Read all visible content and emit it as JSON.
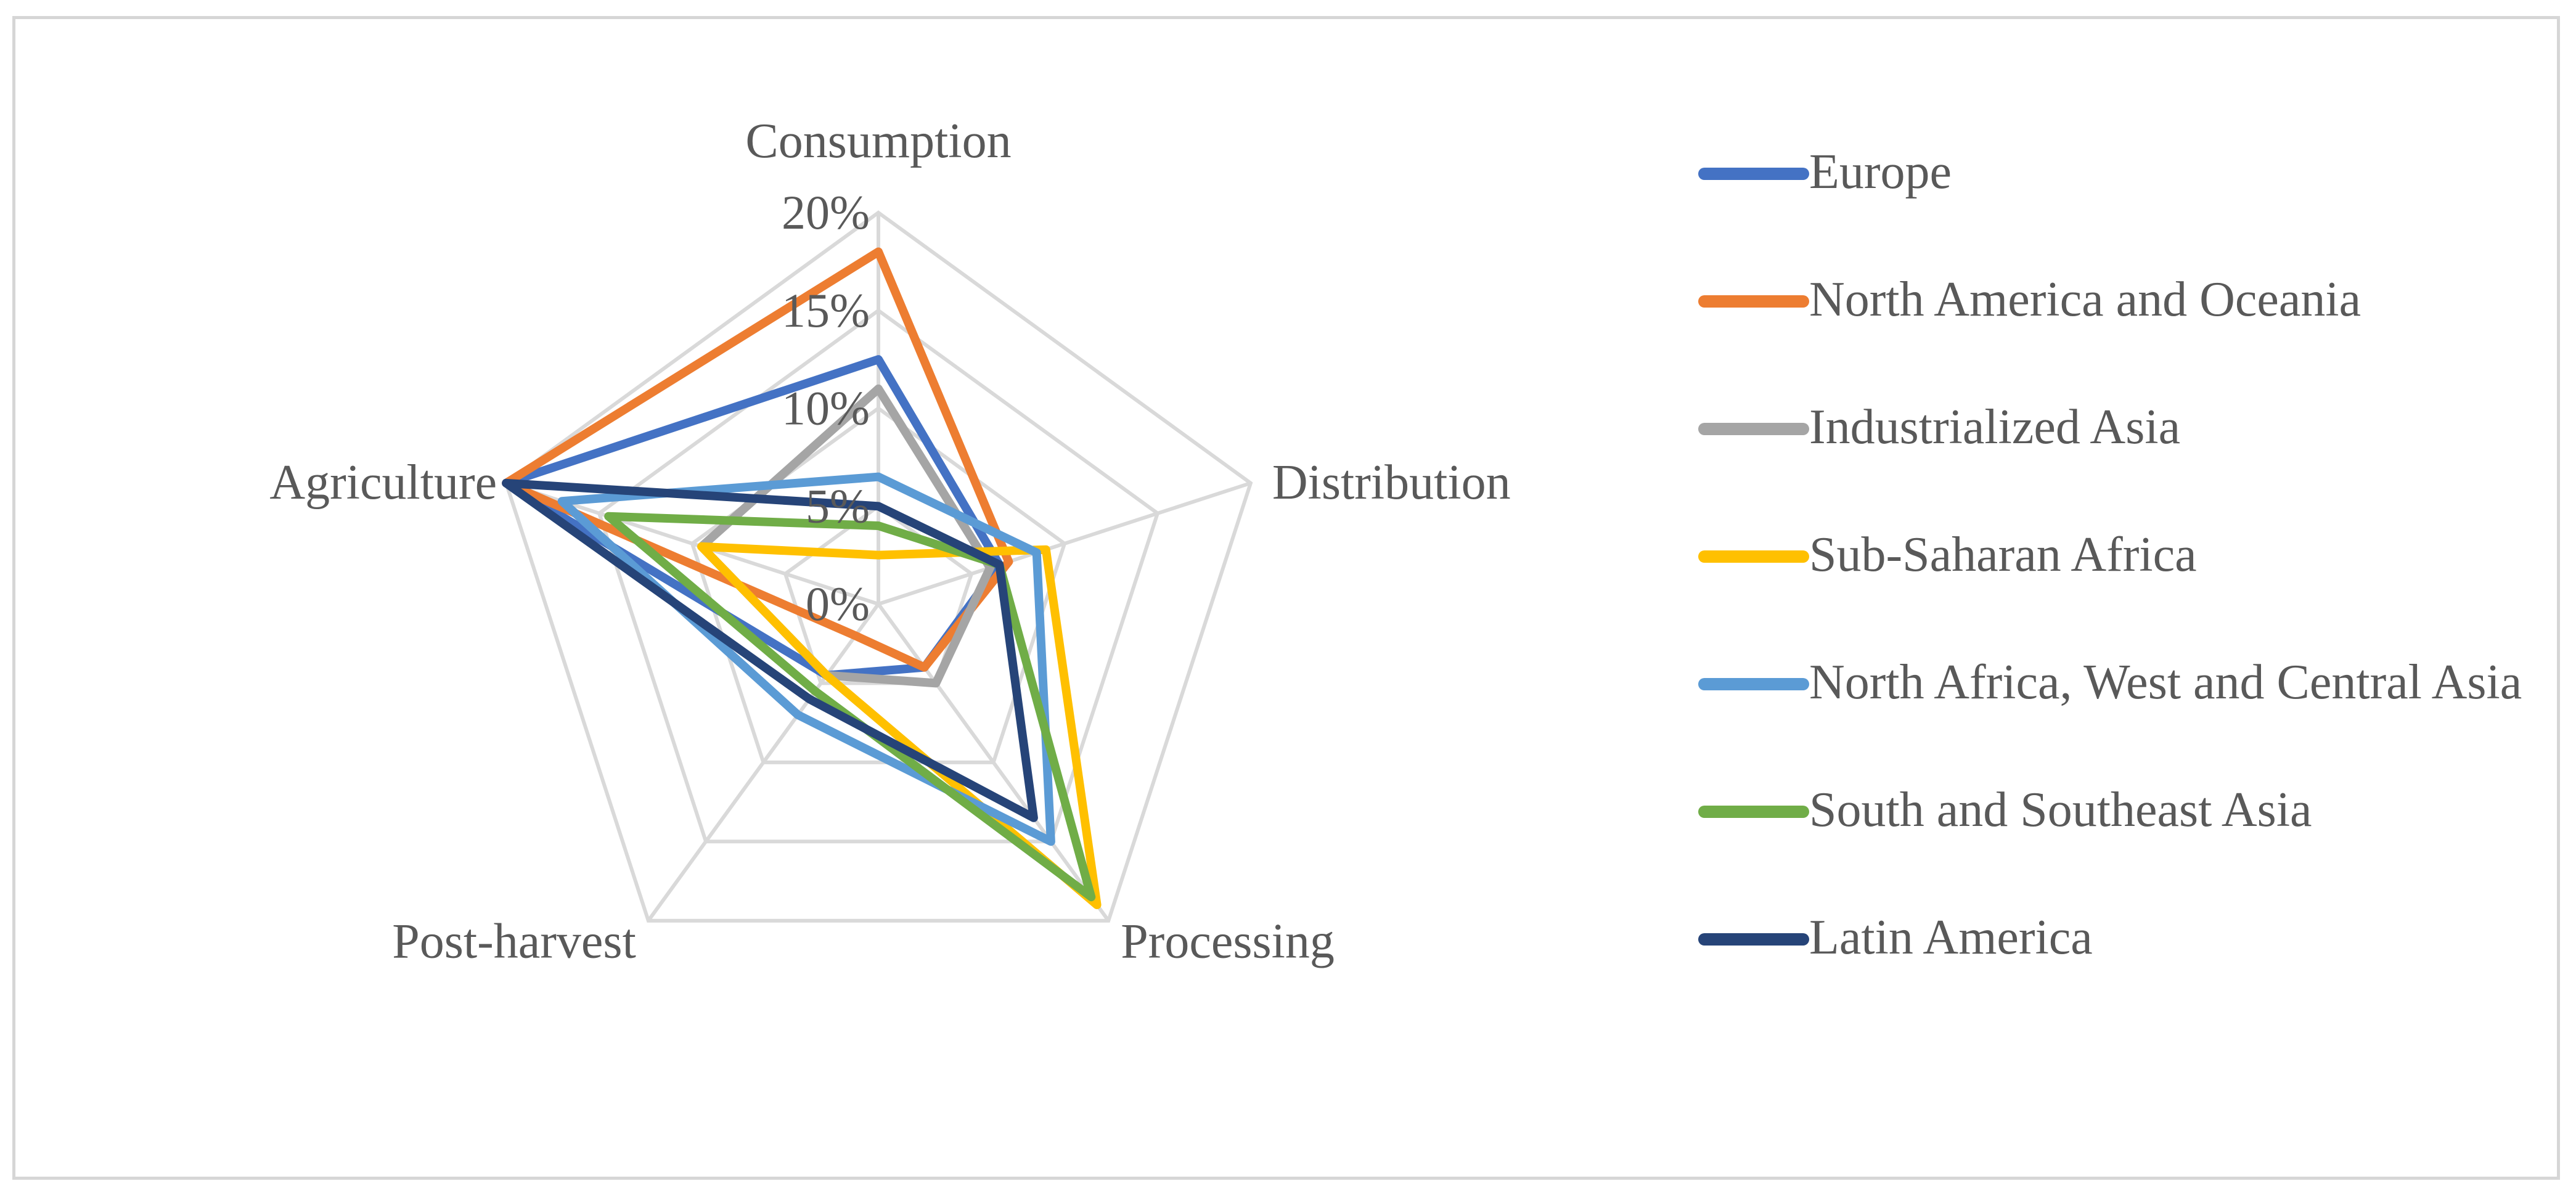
{
  "chart_data": {
    "type": "radar",
    "axes": [
      "Consumption",
      "Distribution",
      "Processing",
      "Post-harvest",
      "Agriculture"
    ],
    "tick_labels": [
      "0%",
      "5%",
      "10%",
      "15%",
      "20%"
    ],
    "range": [
      0,
      20
    ],
    "grid": true,
    "legend_position": "right",
    "series": [
      {
        "name": "Europe",
        "color": "#4472C4",
        "values": [
          12.5,
          6.5,
          4,
          4.5,
          20
        ]
      },
      {
        "name": "North America and Oceania",
        "color": "#ED7D31",
        "values": [
          18,
          7,
          4,
          2,
          20
        ]
      },
      {
        "name": "Industrialized Asia",
        "color": "#A5A5A5",
        "values": [
          11,
          6,
          5,
          4.5,
          9.5
        ]
      },
      {
        "name": "Sub-Saharan Africa",
        "color": "#FFC000",
        "values": [
          2.5,
          9,
          19,
          4.5,
          9.5
        ]
      },
      {
        "name": "North Africa, West and Central Asia",
        "color": "#5B9BD5",
        "values": [
          6.5,
          8.5,
          15,
          7,
          17
        ]
      },
      {
        "name": "South and Southeast Asia",
        "color": "#70AD47",
        "values": [
          4,
          6.5,
          18.5,
          5.5,
          14.5
        ]
      },
      {
        "name": "Latin America",
        "color": "#264478",
        "values": [
          5,
          6.5,
          13.5,
          6,
          20
        ]
      }
    ]
  }
}
